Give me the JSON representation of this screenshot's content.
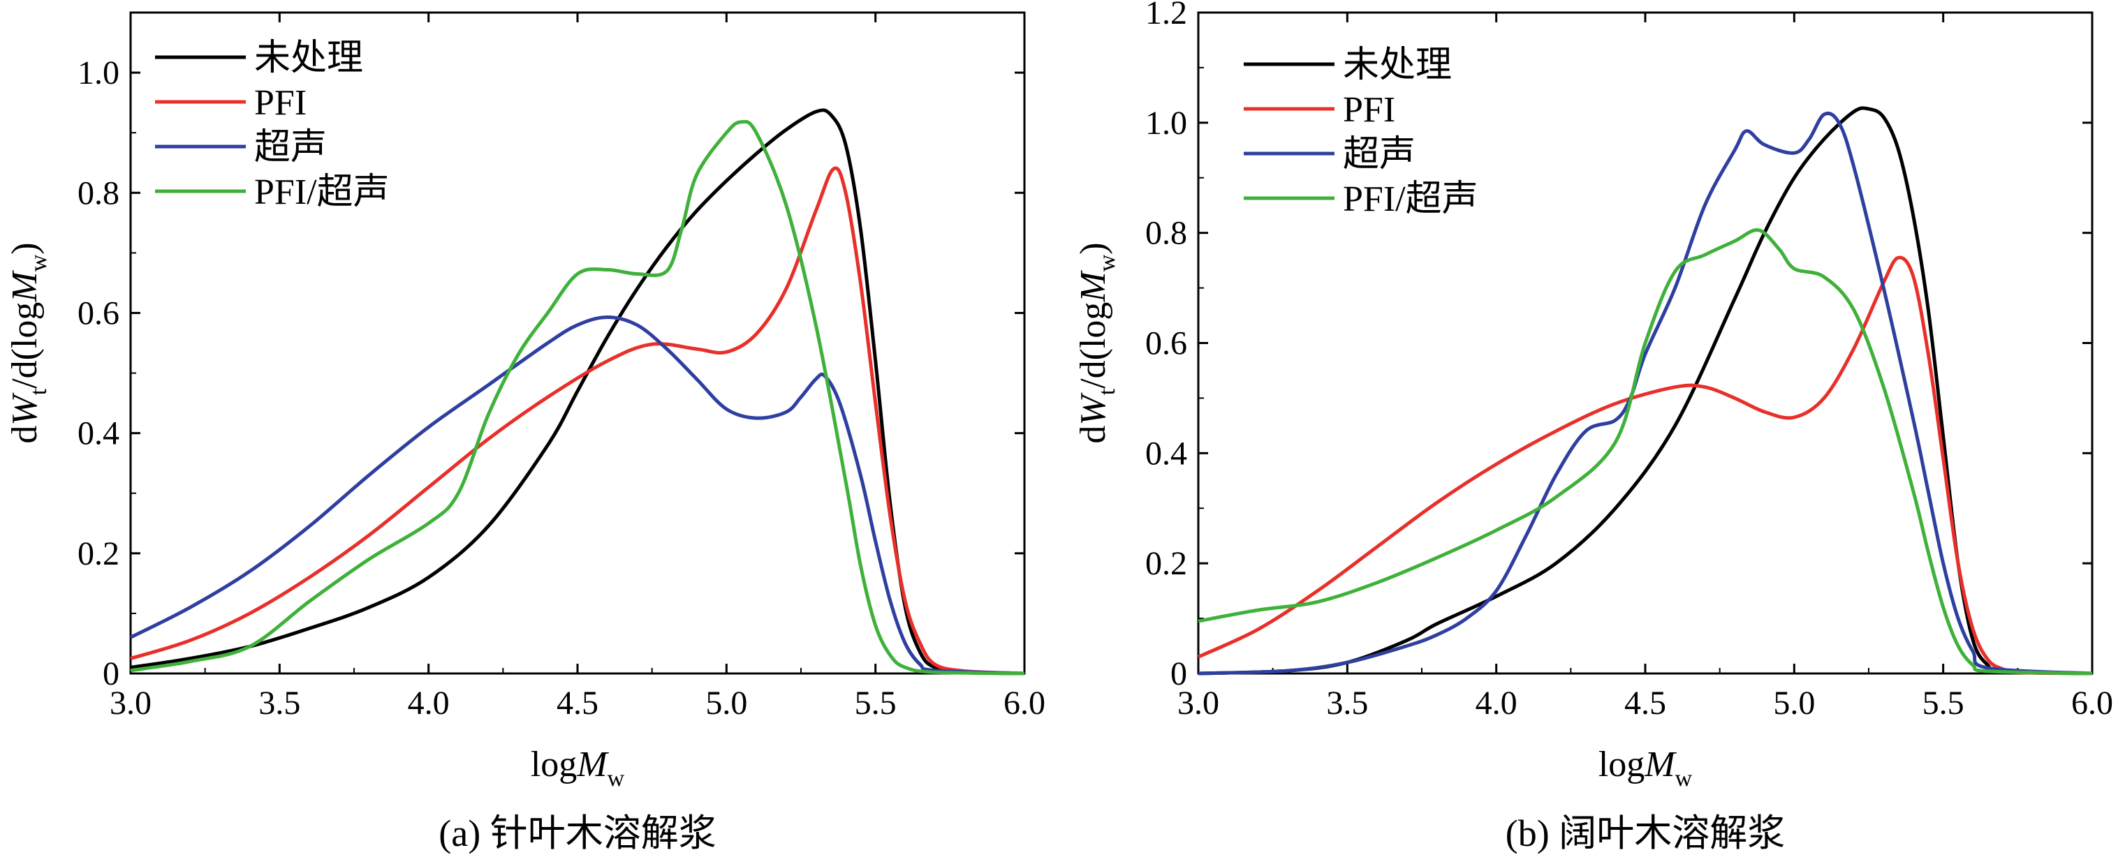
{
  "colors": {
    "untreated": "#000000",
    "pfi": "#e8302a",
    "ultrasound": "#2e3fa0",
    "pfi_ultrasound": "#3fb13a"
  },
  "chart_data": [
    {
      "type": "line",
      "caption": "(a) 针叶木溶解浆",
      "xlabel": {
        "base": "log",
        "var": "M",
        "sub": "w"
      },
      "ylabel": {
        "pre": "d",
        "var1": "W",
        "sub1": "t",
        "mid": "/d(log",
        "var2": "M",
        "sub2": "w",
        "post": ")"
      },
      "xlim": [
        3.0,
        6.0
      ],
      "ylim": [
        0,
        1.1
      ],
      "xticks": [
        "3.0",
        "3.5",
        "4.0",
        "4.5",
        "5.0",
        "5.5",
        "6.0"
      ],
      "xtick_values": [
        3.0,
        3.5,
        4.0,
        4.5,
        5.0,
        5.5,
        6.0
      ],
      "yticks": [
        "0",
        "0.2",
        "0.4",
        "0.6",
        "0.8",
        "1.0"
      ],
      "ytick_values": [
        0,
        0.2,
        0.4,
        0.6,
        0.8,
        1.0
      ],
      "legend_position": "top-left",
      "series": [
        {
          "name": "未处理",
          "color_key": "untreated",
          "points": [
            [
              3.0,
              0.01
            ],
            [
              3.2,
              0.025
            ],
            [
              3.4,
              0.045
            ],
            [
              3.6,
              0.075
            ],
            [
              3.8,
              0.11
            ],
            [
              4.0,
              0.16
            ],
            [
              4.2,
              0.245
            ],
            [
              4.4,
              0.38
            ],
            [
              4.5,
              0.47
            ],
            [
              4.6,
              0.56
            ],
            [
              4.7,
              0.64
            ],
            [
              4.8,
              0.71
            ],
            [
              4.9,
              0.77
            ],
            [
              5.0,
              0.82
            ],
            [
              5.1,
              0.865
            ],
            [
              5.2,
              0.905
            ],
            [
              5.3,
              0.935
            ],
            [
              5.35,
              0.93
            ],
            [
              5.4,
              0.88
            ],
            [
              5.45,
              0.74
            ],
            [
              5.5,
              0.52
            ],
            [
              5.55,
              0.28
            ],
            [
              5.6,
              0.11
            ],
            [
              5.65,
              0.035
            ],
            [
              5.7,
              0.01
            ],
            [
              5.8,
              0.002
            ],
            [
              6.0,
              0.0
            ]
          ]
        },
        {
          "name": "PFI",
          "color_key": "pfi",
          "points": [
            [
              3.0,
              0.025
            ],
            [
              3.2,
              0.055
            ],
            [
              3.4,
              0.1
            ],
            [
              3.6,
              0.16
            ],
            [
              3.8,
              0.23
            ],
            [
              4.0,
              0.31
            ],
            [
              4.2,
              0.39
            ],
            [
              4.4,
              0.46
            ],
            [
              4.6,
              0.52
            ],
            [
              4.75,
              0.548
            ],
            [
              4.9,
              0.54
            ],
            [
              5.0,
              0.535
            ],
            [
              5.1,
              0.565
            ],
            [
              5.2,
              0.64
            ],
            [
              5.3,
              0.77
            ],
            [
              5.36,
              0.84
            ],
            [
              5.4,
              0.8
            ],
            [
              5.45,
              0.65
            ],
            [
              5.5,
              0.45
            ],
            [
              5.55,
              0.26
            ],
            [
              5.6,
              0.12
            ],
            [
              5.65,
              0.05
            ],
            [
              5.7,
              0.015
            ],
            [
              5.8,
              0.004
            ],
            [
              6.0,
              0.0
            ]
          ]
        },
        {
          "name": "超声",
          "color_key": "ultrasound",
          "points": [
            [
              3.0,
              0.06
            ],
            [
              3.2,
              0.11
            ],
            [
              3.4,
              0.17
            ],
            [
              3.6,
              0.245
            ],
            [
              3.8,
              0.33
            ],
            [
              4.0,
              0.41
            ],
            [
              4.2,
              0.48
            ],
            [
              4.4,
              0.55
            ],
            [
              4.5,
              0.58
            ],
            [
              4.6,
              0.593
            ],
            [
              4.7,
              0.58
            ],
            [
              4.8,
              0.54
            ],
            [
              4.9,
              0.49
            ],
            [
              5.0,
              0.44
            ],
            [
              5.1,
              0.425
            ],
            [
              5.2,
              0.435
            ],
            [
              5.25,
              0.46
            ],
            [
              5.3,
              0.49
            ],
            [
              5.33,
              0.495
            ],
            [
              5.38,
              0.45
            ],
            [
              5.45,
              0.33
            ],
            [
              5.5,
              0.22
            ],
            [
              5.55,
              0.12
            ],
            [
              5.6,
              0.05
            ],
            [
              5.65,
              0.015
            ],
            [
              5.7,
              0.005
            ],
            [
              6.0,
              0.0
            ]
          ]
        },
        {
          "name": "PFI/超声",
          "color_key": "pfi_ultrasound",
          "points": [
            [
              3.0,
              0.005
            ],
            [
              3.2,
              0.02
            ],
            [
              3.4,
              0.045
            ],
            [
              3.6,
              0.12
            ],
            [
              3.8,
              0.19
            ],
            [
              4.0,
              0.25
            ],
            [
              4.1,
              0.3
            ],
            [
              4.2,
              0.43
            ],
            [
              4.3,
              0.53
            ],
            [
              4.4,
              0.6
            ],
            [
              4.5,
              0.665
            ],
            [
              4.6,
              0.672
            ],
            [
              4.7,
              0.665
            ],
            [
              4.8,
              0.67
            ],
            [
              4.85,
              0.74
            ],
            [
              4.9,
              0.83
            ],
            [
              5.0,
              0.9
            ],
            [
              5.05,
              0.918
            ],
            [
              5.1,
              0.9
            ],
            [
              5.2,
              0.78
            ],
            [
              5.3,
              0.58
            ],
            [
              5.4,
              0.32
            ],
            [
              5.45,
              0.18
            ],
            [
              5.5,
              0.08
            ],
            [
              5.55,
              0.03
            ],
            [
              5.6,
              0.01
            ],
            [
              5.7,
              0.002
            ],
            [
              6.0,
              0.0
            ]
          ]
        }
      ]
    },
    {
      "type": "line",
      "caption": "(b) 阔叶木溶解浆",
      "xlabel": {
        "base": "log",
        "var": "M",
        "sub": "w"
      },
      "ylabel": {
        "pre": "d",
        "var1": "W",
        "sub1": "t",
        "mid": "/d(log",
        "var2": "M",
        "sub2": "w",
        "post": ")"
      },
      "xlim": [
        3.0,
        6.0
      ],
      "ylim": [
        0,
        1.2
      ],
      "xticks": [
        "3.0",
        "3.5",
        "4.0",
        "4.5",
        "5.0",
        "5.5",
        "6.0"
      ],
      "xtick_values": [
        3.0,
        3.5,
        4.0,
        4.5,
        5.0,
        5.5,
        6.0
      ],
      "yticks": [
        "0",
        "0.2",
        "0.4",
        "0.6",
        "0.8",
        "1.0",
        "1.2"
      ],
      "ytick_values": [
        0,
        0.2,
        0.4,
        0.6,
        0.8,
        1.0,
        1.2
      ],
      "legend_position": "top-left",
      "series": [
        {
          "name": "未处理",
          "color_key": "untreated",
          "points": [
            [
              3.0,
              0.0
            ],
            [
              3.3,
              0.005
            ],
            [
              3.5,
              0.02
            ],
            [
              3.7,
              0.06
            ],
            [
              3.8,
              0.09
            ],
            [
              4.0,
              0.14
            ],
            [
              4.2,
              0.2
            ],
            [
              4.4,
              0.3
            ],
            [
              4.6,
              0.45
            ],
            [
              4.8,
              0.68
            ],
            [
              4.9,
              0.8
            ],
            [
              5.0,
              0.9
            ],
            [
              5.1,
              0.97
            ],
            [
              5.2,
              1.02
            ],
            [
              5.25,
              1.025
            ],
            [
              5.3,
              1.01
            ],
            [
              5.35,
              0.95
            ],
            [
              5.4,
              0.83
            ],
            [
              5.45,
              0.66
            ],
            [
              5.5,
              0.43
            ],
            [
              5.55,
              0.2
            ],
            [
              5.6,
              0.06
            ],
            [
              5.65,
              0.015
            ],
            [
              5.7,
              0.003
            ],
            [
              6.0,
              0.0
            ]
          ]
        },
        {
          "name": "PFI",
          "color_key": "pfi",
          "points": [
            [
              3.0,
              0.03
            ],
            [
              3.2,
              0.08
            ],
            [
              3.4,
              0.15
            ],
            [
              3.6,
              0.23
            ],
            [
              3.8,
              0.31
            ],
            [
              4.0,
              0.38
            ],
            [
              4.2,
              0.44
            ],
            [
              4.4,
              0.49
            ],
            [
              4.6,
              0.52
            ],
            [
              4.7,
              0.52
            ],
            [
              4.8,
              0.5
            ],
            [
              4.9,
              0.475
            ],
            [
              5.0,
              0.465
            ],
            [
              5.1,
              0.5
            ],
            [
              5.2,
              0.59
            ],
            [
              5.3,
              0.71
            ],
            [
              5.35,
              0.755
            ],
            [
              5.4,
              0.72
            ],
            [
              5.45,
              0.58
            ],
            [
              5.5,
              0.39
            ],
            [
              5.55,
              0.2
            ],
            [
              5.6,
              0.08
            ],
            [
              5.65,
              0.025
            ],
            [
              5.7,
              0.008
            ],
            [
              5.75,
              0.002
            ],
            [
              6.0,
              0.0
            ]
          ]
        },
        {
          "name": "超声",
          "color_key": "ultrasound",
          "points": [
            [
              3.0,
              0.0
            ],
            [
              3.3,
              0.005
            ],
            [
              3.5,
              0.02
            ],
            [
              3.7,
              0.05
            ],
            [
              3.8,
              0.07
            ],
            [
              3.9,
              0.1
            ],
            [
              4.0,
              0.15
            ],
            [
              4.1,
              0.25
            ],
            [
              4.2,
              0.36
            ],
            [
              4.3,
              0.44
            ],
            [
              4.4,
              0.46
            ],
            [
              4.45,
              0.5
            ],
            [
              4.5,
              0.58
            ],
            [
              4.6,
              0.7
            ],
            [
              4.7,
              0.85
            ],
            [
              4.8,
              0.95
            ],
            [
              4.84,
              0.985
            ],
            [
              4.9,
              0.96
            ],
            [
              5.0,
              0.945
            ],
            [
              5.05,
              0.97
            ],
            [
              5.1,
              1.015
            ],
            [
              5.15,
              1.0
            ],
            [
              5.2,
              0.92
            ],
            [
              5.3,
              0.7
            ],
            [
              5.4,
              0.46
            ],
            [
              5.45,
              0.33
            ],
            [
              5.5,
              0.2
            ],
            [
              5.55,
              0.1
            ],
            [
              5.6,
              0.04
            ],
            [
              5.65,
              0.01
            ],
            [
              6.0,
              0.0
            ]
          ]
        },
        {
          "name": "PFI/超声",
          "color_key": "pfi_ultrasound",
          "points": [
            [
              3.0,
              0.095
            ],
            [
              3.2,
              0.115
            ],
            [
              3.4,
              0.13
            ],
            [
              3.6,
              0.165
            ],
            [
              3.8,
              0.21
            ],
            [
              4.0,
              0.26
            ],
            [
              4.2,
              0.32
            ],
            [
              4.4,
              0.42
            ],
            [
              4.5,
              0.6
            ],
            [
              4.6,
              0.73
            ],
            [
              4.7,
              0.76
            ],
            [
              4.8,
              0.785
            ],
            [
              4.88,
              0.805
            ],
            [
              4.95,
              0.77
            ],
            [
              5.0,
              0.735
            ],
            [
              5.1,
              0.72
            ],
            [
              5.2,
              0.66
            ],
            [
              5.3,
              0.52
            ],
            [
              5.4,
              0.33
            ],
            [
              5.45,
              0.22
            ],
            [
              5.5,
              0.12
            ],
            [
              5.55,
              0.05
            ],
            [
              5.6,
              0.015
            ],
            [
              5.65,
              0.004
            ],
            [
              6.0,
              0.0
            ]
          ]
        }
      ]
    }
  ]
}
